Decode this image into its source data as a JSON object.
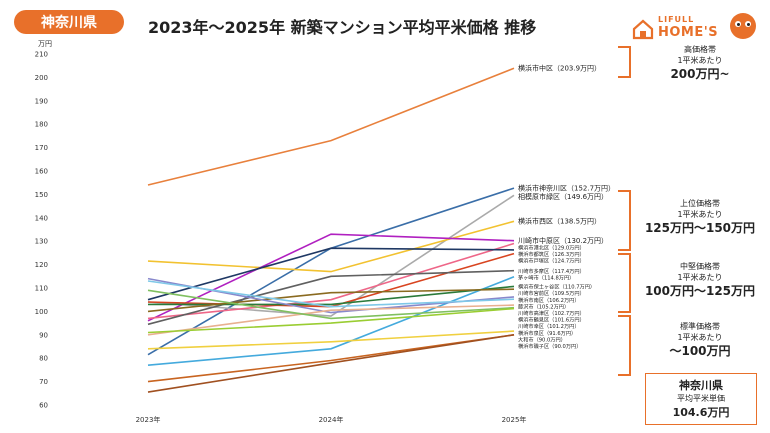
{
  "header": {
    "region_badge": "神奈川県",
    "title": "2023年～2025年 新築マンション平均平米価格 推移"
  },
  "logo": {
    "top": "LIFULL",
    "bottom": "HOME'S"
  },
  "tiers": [
    {
      "t1": "高価格帯",
      "t2": "1平米あたり",
      "t3": "200万円~"
    },
    {
      "t1": "上位価格帯",
      "t2": "1平米あたり",
      "t3": "125万円～150万円"
    },
    {
      "t1": "中堅価格帯",
      "t2": "1平米あたり",
      "t3": "100万円～125万円"
    },
    {
      "t1": "標準価格帯",
      "t2": "1平米あたり",
      "t3": "～100万円"
    }
  ],
  "average": {
    "region": "神奈川県",
    "label": "平均平米単価",
    "value": "104.6万円"
  },
  "colors": {
    "accent": "#e8702a"
  },
  "chart_data": {
    "type": "line",
    "ylabel": "万円",
    "ylim": [
      60,
      210
    ],
    "yticks": [
      60,
      70,
      80,
      90,
      100,
      110,
      120,
      130,
      140,
      150,
      160,
      170,
      180,
      190,
      200,
      210
    ],
    "categories": [
      "2023年",
      "2024年",
      "2025年"
    ],
    "grid": false,
    "series": [
      {
        "name": "横浜市中区",
        "label": "横浜市中区（203.9万円）",
        "values": [
          154,
          173,
          203.9
        ],
        "color": "#e8803c"
      },
      {
        "name": "横浜市神奈川区",
        "label": "横浜市神奈川区（152.7万円）",
        "values": [
          81.5,
          127,
          152.7
        ],
        "color": "#3a6ea8"
      },
      {
        "name": "相模原市緑区",
        "label": "相模原市緑区（149.6万円）",
        "values": [
          104,
          98,
          149.6
        ],
        "color": "#aaaaaa"
      },
      {
        "name": "横浜市西区",
        "label": "横浜市西区（138.5万円）",
        "values": [
          121.5,
          117,
          138.5
        ],
        "color": "#f2c230"
      },
      {
        "name": "川崎市中原区",
        "label": "川崎市中原区（130.2万円）",
        "values": [
          96,
          133,
          130.2
        ],
        "color": "#b020c0"
      },
      {
        "name": "横浜市港北区",
        "label": "横浜市港北区（129.0万円）",
        "values": [
          97,
          105,
          129
        ],
        "color": "#ee6688"
      },
      {
        "name": "横浜市都筑区",
        "label": "横浜市都筑区（126.3万円）",
        "values": [
          105,
          127,
          126.3
        ],
        "color": "#1f3864"
      },
      {
        "name": "横浜市戸塚区",
        "label": "横浜市戸塚区（124.7万円）",
        "values": [
          104,
          102,
          124.7
        ],
        "color": "#d84420"
      },
      {
        "name": "川崎市多摩区",
        "label": "川崎市多摩区（117.4万円）",
        "values": [
          94.5,
          115,
          117.4
        ],
        "color": "#606060"
      },
      {
        "name": "茅ヶ崎市",
        "label": "茅ヶ崎市（114.8万円）",
        "values": [
          77,
          84,
          114.8
        ],
        "color": "#44aadd"
      },
      {
        "name": "横浜市保土ヶ谷区",
        "label": "横浜市保土ヶ谷区（110.7万円）",
        "values": [
          103,
          103,
          110.7
        ],
        "color": "#2a7a3a"
      },
      {
        "name": "川崎市宮前区",
        "label": "川崎市宮前区（109.5万円）",
        "values": [
          100,
          108,
          109.5
        ],
        "color": "#8a6a20"
      },
      {
        "name": "横浜市南区",
        "label": "横浜市南区（106.2万円）",
        "values": [
          114,
          99.5,
          106.2
        ],
        "color": "#8888cc"
      },
      {
        "name": "藤沢市",
        "label": "藤沢市（105.2万円）",
        "values": [
          113,
          102,
          105.2
        ],
        "color": "#7fc8e8"
      },
      {
        "name": "川崎市高津区",
        "label": "川崎市高津区（102.7万円）",
        "values": [
          90,
          100.5,
          102.7
        ],
        "color": "#e8b090"
      },
      {
        "name": "横浜市鶴見区",
        "label": "横浜市鶴見区（101.6万円）",
        "values": [
          109,
          97,
          101.6
        ],
        "color": "#80c060"
      },
      {
        "name": "川崎市幸区",
        "label": "川崎市幸区（101.2万円）",
        "values": [
          91,
          95,
          101.2
        ],
        "color": "#9acd32"
      },
      {
        "name": "横浜市泉区",
        "label": "横浜市泉区（91.6万円）",
        "values": [
          84,
          87,
          91.6
        ],
        "color": "#f0d040"
      },
      {
        "name": "大和市",
        "label": "大和市（90.0万円）",
        "values": [
          70,
          79,
          90
        ],
        "color": "#c86420"
      },
      {
        "name": "横浜市磯子区",
        "label": "横浜市磯子区（90.0万円）",
        "values": [
          65.5,
          78,
          90
        ],
        "color": "#a05020"
      }
    ]
  }
}
